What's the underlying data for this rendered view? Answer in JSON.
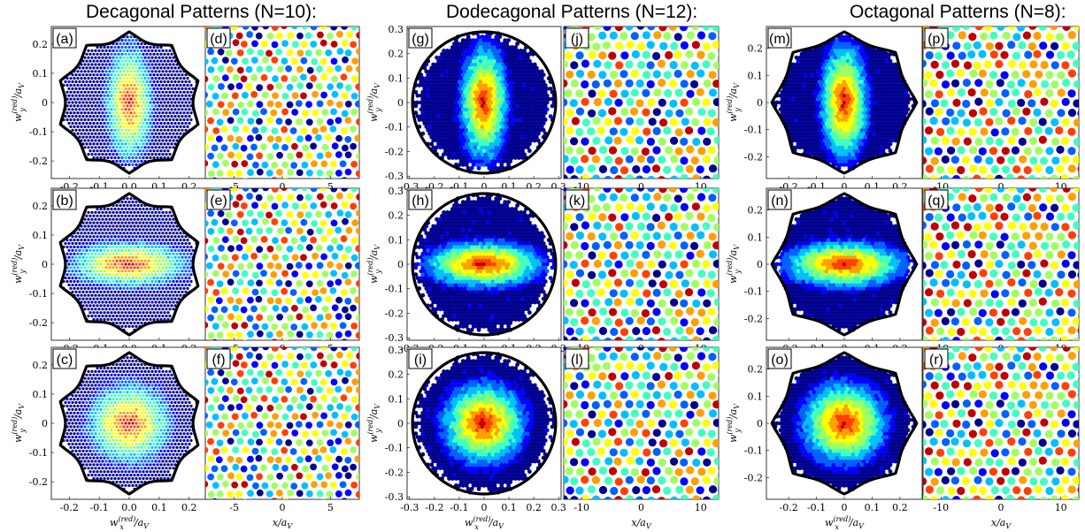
{
  "colors": {
    "jet": [
      "#00008f",
      "#0000ff",
      "#0060ff",
      "#00bfff",
      "#40ffbf",
      "#9fff60",
      "#ffff00",
      "#ff9f00",
      "#ff4000",
      "#bf0000"
    ],
    "boundary": "#000000"
  },
  "group_titles": [
    "Decagonal Patterns (N=10):",
    "Dodecagonal Patterns (N=12):",
    "Octagonal Patterns (N=8):"
  ],
  "axis_text": {
    "wx": "w",
    "wx_sub": "x",
    "wx_sup": "(red)",
    "wy": "w",
    "wy_sub": "y",
    "wy_sup": "(red)",
    "aV": "/a",
    "aV_sub": "V",
    "x_over_aV": "x/a",
    "x_sub": "V"
  },
  "chart_data": [
    {
      "panel": "a",
      "type": "scatter",
      "group": "Decagonal",
      "symmetry": 10,
      "shape": "star",
      "spread": "vertical",
      "xlim": [
        -0.26,
        0.26
      ],
      "ylim": [
        -0.26,
        0.26
      ],
      "xticks": [
        "-0.2",
        "-0.1",
        "0.0",
        "0.1",
        "0.2"
      ],
      "yticks": [
        "0.2",
        "0.1",
        "0",
        "-0.1",
        "-0.2"
      ],
      "show_xlabel": false,
      "show_ylabel": true
    },
    {
      "panel": "b",
      "type": "scatter",
      "group": "Decagonal",
      "symmetry": 10,
      "shape": "star",
      "spread": "horizontal",
      "xlim": [
        -0.26,
        0.26
      ],
      "ylim": [
        -0.26,
        0.26
      ],
      "xticks": [
        "-0.2",
        "-0.1",
        "0.0",
        "0.1",
        "0.2"
      ],
      "yticks": [
        "0.2",
        "0.1",
        "0",
        "-0.1",
        "-0.2"
      ],
      "show_xlabel": false,
      "show_ylabel": true
    },
    {
      "panel": "c",
      "type": "scatter",
      "group": "Decagonal",
      "symmetry": 10,
      "shape": "star",
      "spread": "central",
      "xlim": [
        -0.26,
        0.26
      ],
      "ylim": [
        -0.26,
        0.26
      ],
      "xticks": [
        "-0.2",
        "-0.1",
        "0.0",
        "0.1",
        "0.2"
      ],
      "yticks": [
        "0.2",
        "0.1",
        "0",
        "-0.1",
        "-0.2"
      ],
      "show_xlabel": true,
      "show_ylabel": true
    },
    {
      "panel": "d",
      "type": "pattern",
      "group": "Decagonal",
      "symmetry": 10,
      "xlim": [
        -8,
        8
      ],
      "xticks": [
        "-5",
        "0",
        "5"
      ],
      "show_xlabel": false
    },
    {
      "panel": "e",
      "type": "pattern",
      "group": "Decagonal",
      "symmetry": 10,
      "xlim": [
        -8,
        8
      ],
      "xticks": [
        "-5",
        "0",
        "5"
      ],
      "show_xlabel": false
    },
    {
      "panel": "f",
      "type": "pattern",
      "group": "Decagonal",
      "symmetry": 10,
      "xlim": [
        -8,
        8
      ],
      "xticks": [
        "-5",
        "0",
        "5"
      ],
      "show_xlabel": true
    },
    {
      "panel": "g",
      "type": "scatter",
      "group": "Dodecagonal",
      "symmetry": 12,
      "shape": "polygon",
      "spread": "vertical",
      "xlim": [
        -0.31,
        0.31
      ],
      "ylim": [
        -0.31,
        0.31
      ],
      "xticks": [
        "-0.3",
        "-0.2",
        "-0.1",
        "0",
        "0.1",
        "0.2",
        "0.3"
      ],
      "yticks": [
        "0.3",
        "0.2",
        "0.1",
        "0",
        "-0.1",
        "-0.2",
        "-0.3"
      ],
      "show_xlabel": false,
      "show_ylabel": true
    },
    {
      "panel": "h",
      "type": "scatter",
      "group": "Dodecagonal",
      "symmetry": 12,
      "shape": "polygon",
      "spread": "horizontal",
      "xlim": [
        -0.31,
        0.31
      ],
      "ylim": [
        -0.31,
        0.31
      ],
      "xticks": [
        "-0.3",
        "-0.2",
        "-0.1",
        "0",
        "0.1",
        "0.2",
        "0.3"
      ],
      "yticks": [
        "0.3",
        "0.2",
        "0.1",
        "0",
        "-0.1",
        "-0.2",
        "-0.3"
      ],
      "show_xlabel": false,
      "show_ylabel": true
    },
    {
      "panel": "i",
      "type": "scatter",
      "group": "Dodecagonal",
      "symmetry": 12,
      "shape": "polygon",
      "spread": "central",
      "xlim": [
        -0.31,
        0.31
      ],
      "ylim": [
        -0.31,
        0.31
      ],
      "xticks": [
        "-0.3",
        "-0.2",
        "-0.1",
        "0",
        "0.1",
        "0.2",
        "0.3"
      ],
      "yticks": [
        "0.3",
        "0.2",
        "0.1",
        "0",
        "-0.1",
        "-0.2",
        "-0.3"
      ],
      "show_xlabel": true,
      "show_ylabel": true
    },
    {
      "panel": "j",
      "type": "pattern",
      "group": "Dodecagonal",
      "symmetry": 12,
      "xlim": [
        -13,
        13
      ],
      "xticks": [
        "-10",
        "0",
        "10"
      ],
      "show_xlabel": false
    },
    {
      "panel": "k",
      "type": "pattern",
      "group": "Dodecagonal",
      "symmetry": 12,
      "xlim": [
        -13,
        13
      ],
      "xticks": [
        "-10",
        "0",
        "10"
      ],
      "show_xlabel": false
    },
    {
      "panel": "l",
      "type": "pattern",
      "group": "Dodecagonal",
      "symmetry": 12,
      "xlim": [
        -13,
        13
      ],
      "xticks": [
        "-10",
        "0",
        "10"
      ],
      "show_xlabel": true
    },
    {
      "panel": "m",
      "type": "scatter",
      "group": "Octagonal",
      "symmetry": 8,
      "shape": "star",
      "spread": "vertical",
      "xlim": [
        -0.28,
        0.28
      ],
      "ylim": [
        -0.28,
        0.28
      ],
      "xticks": [
        "-0.2",
        "-0.1",
        "0",
        "0.1",
        "0.2"
      ],
      "yticks": [
        "0.2",
        "0.1",
        "0",
        "-0.1",
        "-0.2"
      ],
      "show_xlabel": false,
      "show_ylabel": true
    },
    {
      "panel": "n",
      "type": "scatter",
      "group": "Octagonal",
      "symmetry": 8,
      "shape": "star",
      "spread": "horizontal",
      "xlim": [
        -0.28,
        0.28
      ],
      "ylim": [
        -0.28,
        0.28
      ],
      "xticks": [
        "-0.2",
        "-0.1",
        "0",
        "0.1",
        "0.2"
      ],
      "yticks": [
        "0.2",
        "0.1",
        "0",
        "-0.1",
        "-0.2"
      ],
      "show_xlabel": false,
      "show_ylabel": true
    },
    {
      "panel": "o",
      "type": "scatter",
      "group": "Octagonal",
      "symmetry": 8,
      "shape": "star",
      "spread": "central",
      "xlim": [
        -0.28,
        0.28
      ],
      "ylim": [
        -0.28,
        0.28
      ],
      "xticks": [
        "-0.2",
        "-0.1",
        "0",
        "0.1",
        "0.2"
      ],
      "yticks": [
        "0.2",
        "0.1",
        "0",
        "-0.1",
        "-0.2"
      ],
      "show_xlabel": true,
      "show_ylabel": true
    },
    {
      "panel": "p",
      "type": "pattern",
      "group": "Octagonal",
      "symmetry": 8,
      "xlim": [
        -13,
        13
      ],
      "xticks": [
        "-10",
        "0",
        "10"
      ],
      "show_xlabel": false
    },
    {
      "panel": "q",
      "type": "pattern",
      "group": "Octagonal",
      "symmetry": 8,
      "xlim": [
        -13,
        13
      ],
      "xticks": [
        "-10",
        "0",
        "10"
      ],
      "show_xlabel": false
    },
    {
      "panel": "r",
      "type": "pattern",
      "group": "Octagonal",
      "symmetry": 8,
      "xlim": [
        -13,
        13
      ],
      "xticks": [
        "-10",
        "0",
        "10"
      ],
      "show_xlabel": true
    }
  ]
}
